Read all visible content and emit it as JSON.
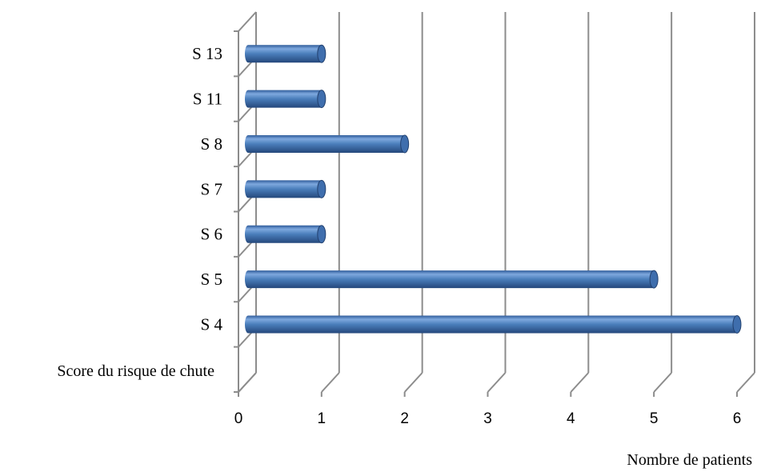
{
  "chart_data": {
    "type": "bar",
    "orientation": "horizontal",
    "style": "3d-cylinder",
    "categories": [
      "S 4",
      "S 5",
      "S 6",
      "S 7",
      "S 8",
      "S 11",
      "S 13"
    ],
    "values": [
      6,
      5,
      1,
      1,
      2,
      1,
      1
    ],
    "ylabel": "Score du risque de chute",
    "xlabel": "Nombre de patients",
    "xlim": [
      0,
      6
    ],
    "xticks": [
      "0",
      "1",
      "2",
      "3",
      "4",
      "5",
      "6"
    ],
    "grid": true,
    "colors": {
      "bar": "#4A7EBB",
      "bar_dark": "#2B4F86",
      "bar_light": "#8FB3E3",
      "grid": "#8C8C8C"
    }
  }
}
